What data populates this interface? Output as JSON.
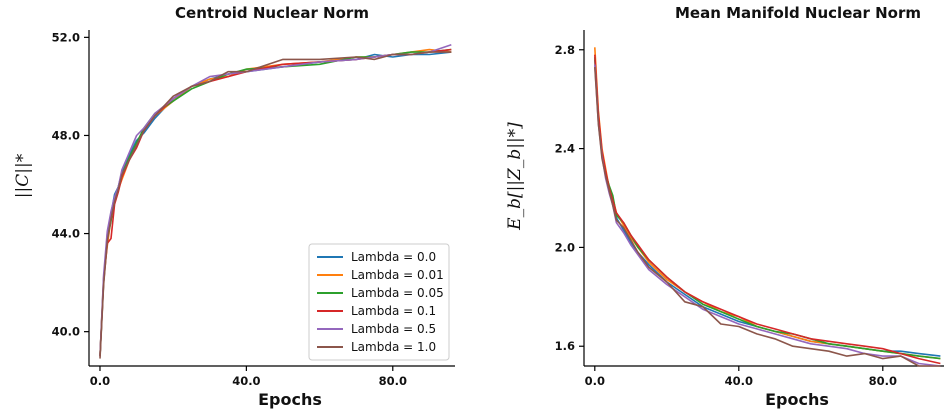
{
  "chart_data": [
    {
      "type": "line",
      "title": "Centroid Nuclear Norm",
      "xlabel": "Epochs",
      "ylabel": "||C||*",
      "xlim": [
        -3,
        97
      ],
      "ylim": [
        38.6,
        52.3
      ],
      "xticks": [
        0,
        40,
        80
      ],
      "xtick_labels": [
        "0.0",
        "40.0",
        "80.0"
      ],
      "yticks": [
        40,
        44,
        48,
        52
      ],
      "ytick_labels": [
        "40.0",
        "44.0",
        "48.0",
        "52.0"
      ],
      "legend_position": "lower-right",
      "grid": false,
      "series": [
        {
          "name": "Lambda = 0.0",
          "color": "#1f77b4",
          "x": [
            0,
            1,
            2,
            3,
            4,
            5,
            6,
            8,
            10,
            12,
            15,
            20,
            25,
            30,
            35,
            40,
            50,
            60,
            70,
            75,
            80,
            85,
            90,
            96
          ],
          "y": [
            39.0,
            42.0,
            44.0,
            44.8,
            45.6,
            45.9,
            46.5,
            47.2,
            47.8,
            48.1,
            48.7,
            49.5,
            50.0,
            50.3,
            50.5,
            50.6,
            50.8,
            51.0,
            51.1,
            51.3,
            51.2,
            51.3,
            51.3,
            51.4
          ]
        },
        {
          "name": "Lambda = 0.01",
          "color": "#ff7f0e",
          "x": [
            0,
            1,
            2,
            3,
            4,
            5,
            6,
            8,
            10,
            12,
            15,
            20,
            25,
            30,
            35,
            40,
            50,
            60,
            70,
            75,
            80,
            85,
            90,
            96
          ],
          "y": [
            39.0,
            42.2,
            43.5,
            44.6,
            45.3,
            45.8,
            46.2,
            47.0,
            47.6,
            48.2,
            48.8,
            49.4,
            50.0,
            50.3,
            50.4,
            50.7,
            50.9,
            51.0,
            51.2,
            51.2,
            51.3,
            51.4,
            51.5,
            51.4
          ]
        },
        {
          "name": "Lambda = 0.05",
          "color": "#2ca02c",
          "x": [
            0,
            1,
            2,
            3,
            4,
            5,
            6,
            8,
            10,
            12,
            15,
            20,
            25,
            30,
            35,
            40,
            50,
            60,
            70,
            75,
            80,
            85,
            90,
            96
          ],
          "y": [
            39.0,
            42.1,
            43.8,
            44.5,
            45.4,
            45.9,
            46.4,
            47.1,
            47.7,
            48.3,
            48.9,
            49.4,
            49.9,
            50.2,
            50.5,
            50.7,
            50.8,
            50.9,
            51.2,
            51.2,
            51.3,
            51.4,
            51.4,
            51.5
          ]
        },
        {
          "name": "Lambda = 0.1",
          "color": "#d62728",
          "x": [
            0,
            1,
            2,
            3,
            4,
            5,
            6,
            8,
            10,
            12,
            15,
            20,
            25,
            30,
            35,
            40,
            50,
            60,
            70,
            75,
            80,
            85,
            90,
            96
          ],
          "y": [
            39.0,
            42.0,
            43.6,
            43.8,
            45.2,
            45.7,
            46.3,
            47.0,
            47.5,
            48.2,
            48.8,
            49.5,
            50.0,
            50.2,
            50.4,
            50.6,
            50.9,
            51.0,
            51.1,
            51.2,
            51.3,
            51.3,
            51.4,
            51.5
          ]
        },
        {
          "name": "Lambda = 0.5",
          "color": "#9467bd",
          "x": [
            0,
            1,
            2,
            3,
            4,
            5,
            6,
            8,
            10,
            12,
            15,
            20,
            25,
            30,
            35,
            40,
            50,
            60,
            70,
            75,
            80,
            85,
            90,
            96
          ],
          "y": [
            39.0,
            42.3,
            44.1,
            44.9,
            45.5,
            45.9,
            46.6,
            47.3,
            48.0,
            48.3,
            48.9,
            49.5,
            50.0,
            50.4,
            50.5,
            50.6,
            50.8,
            51.0,
            51.1,
            51.2,
            51.3,
            51.3,
            51.4,
            51.7
          ]
        },
        {
          "name": "Lambda = 1.0",
          "color": "#8c564b",
          "x": [
            0,
            1,
            2,
            3,
            4,
            5,
            6,
            8,
            10,
            12,
            15,
            20,
            25,
            30,
            35,
            40,
            50,
            60,
            70,
            75,
            80,
            85,
            90,
            96
          ],
          "y": [
            38.9,
            41.9,
            43.7,
            44.6,
            45.3,
            45.8,
            46.4,
            47.0,
            47.6,
            48.2,
            48.8,
            49.6,
            50.0,
            50.2,
            50.6,
            50.6,
            51.1,
            51.1,
            51.2,
            51.1,
            51.3,
            51.3,
            51.4,
            51.4
          ]
        }
      ]
    },
    {
      "type": "line",
      "title": "Mean Manifold Nuclear Norm",
      "xlabel": "Epochs",
      "ylabel": "E_b[||Z_b||*]",
      "xlim": [
        -3,
        97
      ],
      "ylim": [
        1.52,
        2.88
      ],
      "xticks": [
        0,
        40,
        80
      ],
      "xtick_labels": [
        "0.0",
        "40.0",
        "80.0"
      ],
      "yticks": [
        1.6,
        2.0,
        2.4,
        2.8
      ],
      "ytick_labels": [
        "1.6",
        "2.0",
        "2.4",
        "2.8"
      ],
      "grid": false,
      "series": [
        {
          "name": "Lambda = 0.0",
          "color": "#1f77b4",
          "x": [
            0,
            1,
            2,
            3,
            4,
            5,
            6,
            8,
            10,
            12,
            15,
            20,
            25,
            30,
            35,
            40,
            45,
            50,
            55,
            60,
            65,
            70,
            75,
            80,
            85,
            90,
            96
          ],
          "y": [
            2.76,
            2.52,
            2.38,
            2.3,
            2.24,
            2.18,
            2.12,
            2.07,
            2.02,
            1.98,
            1.93,
            1.86,
            1.81,
            1.76,
            1.73,
            1.7,
            1.68,
            1.66,
            1.64,
            1.62,
            1.61,
            1.6,
            1.59,
            1.58,
            1.58,
            1.57,
            1.56
          ]
        },
        {
          "name": "Lambda = 0.01",
          "color": "#ff7f0e",
          "x": [
            0,
            1,
            2,
            3,
            4,
            5,
            6,
            8,
            10,
            12,
            15,
            20,
            25,
            30,
            35,
            40,
            45,
            50,
            55,
            60,
            65,
            70,
            75,
            80,
            85,
            90,
            96
          ],
          "y": [
            2.81,
            2.55,
            2.4,
            2.32,
            2.24,
            2.2,
            2.14,
            2.09,
            2.04,
            2.0,
            1.94,
            1.87,
            1.82,
            1.78,
            1.74,
            1.72,
            1.68,
            1.66,
            1.64,
            1.62,
            1.61,
            1.6,
            1.59,
            1.58,
            1.57,
            1.56,
            1.55
          ]
        },
        {
          "name": "Lambda = 0.05",
          "color": "#2ca02c",
          "x": [
            0,
            1,
            2,
            3,
            4,
            5,
            6,
            8,
            10,
            12,
            15,
            20,
            25,
            30,
            35,
            40,
            45,
            50,
            55,
            60,
            65,
            70,
            75,
            80,
            85,
            90,
            96
          ],
          "y": [
            2.77,
            2.53,
            2.38,
            2.3,
            2.25,
            2.21,
            2.13,
            2.1,
            2.05,
            2.0,
            1.95,
            1.88,
            1.82,
            1.77,
            1.74,
            1.71,
            1.68,
            1.66,
            1.65,
            1.63,
            1.61,
            1.6,
            1.59,
            1.58,
            1.57,
            1.56,
            1.55
          ]
        },
        {
          "name": "Lambda = 0.1",
          "color": "#d62728",
          "x": [
            0,
            1,
            2,
            3,
            4,
            5,
            6,
            8,
            10,
            12,
            15,
            20,
            25,
            30,
            35,
            40,
            45,
            50,
            55,
            60,
            65,
            70,
            75,
            80,
            85,
            90,
            96
          ],
          "y": [
            2.78,
            2.54,
            2.39,
            2.31,
            2.24,
            2.19,
            2.14,
            2.1,
            2.05,
            2.01,
            1.95,
            1.88,
            1.82,
            1.78,
            1.75,
            1.72,
            1.69,
            1.67,
            1.65,
            1.63,
            1.62,
            1.61,
            1.6,
            1.59,
            1.57,
            1.55,
            1.53
          ]
        },
        {
          "name": "Lambda = 0.5",
          "color": "#9467bd",
          "x": [
            0,
            1,
            2,
            3,
            4,
            5,
            6,
            8,
            10,
            12,
            15,
            20,
            25,
            30,
            35,
            40,
            45,
            50,
            55,
            60,
            65,
            70,
            75,
            80,
            85,
            90,
            96
          ],
          "y": [
            2.74,
            2.5,
            2.37,
            2.28,
            2.22,
            2.17,
            2.1,
            2.06,
            2.01,
            1.97,
            1.91,
            1.85,
            1.8,
            1.75,
            1.72,
            1.69,
            1.67,
            1.65,
            1.63,
            1.61,
            1.6,
            1.59,
            1.57,
            1.56,
            1.56,
            1.53,
            1.52
          ]
        },
        {
          "name": "Lambda = 1.0",
          "color": "#8c564b",
          "x": [
            0,
            1,
            2,
            3,
            4,
            5,
            6,
            8,
            10,
            12,
            15,
            20,
            25,
            30,
            35,
            40,
            45,
            50,
            55,
            60,
            65,
            70,
            75,
            80,
            85,
            90,
            96
          ],
          "y": [
            2.73,
            2.5,
            2.36,
            2.29,
            2.23,
            2.17,
            2.11,
            2.08,
            2.03,
            1.98,
            1.92,
            1.86,
            1.78,
            1.76,
            1.69,
            1.68,
            1.65,
            1.63,
            1.6,
            1.59,
            1.58,
            1.56,
            1.57,
            1.55,
            1.56,
            1.52,
            1.52
          ]
        }
      ]
    }
  ]
}
